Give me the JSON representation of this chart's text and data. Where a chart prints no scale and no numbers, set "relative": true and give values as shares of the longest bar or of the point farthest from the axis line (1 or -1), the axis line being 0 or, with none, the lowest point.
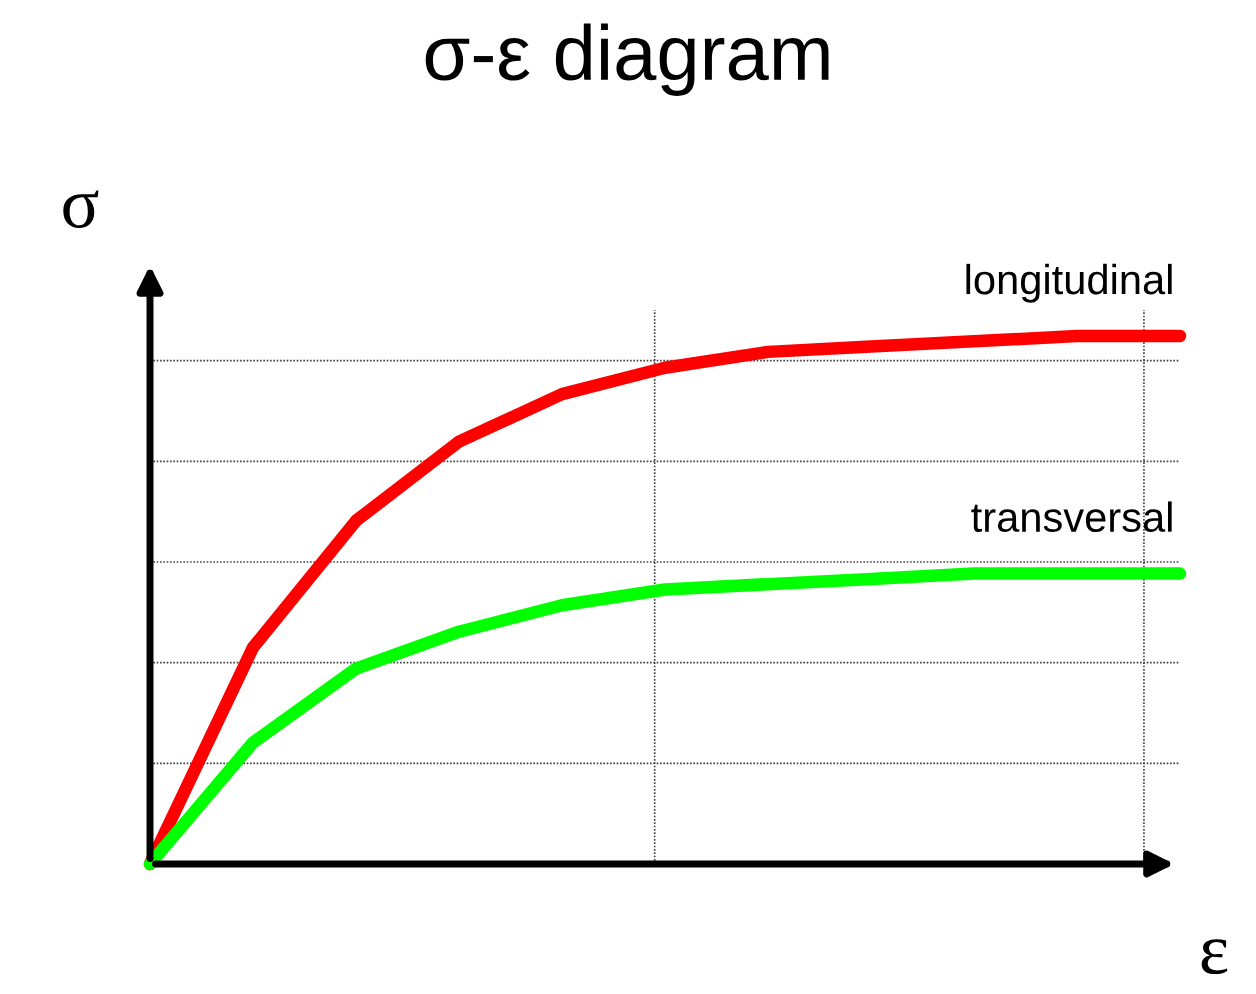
{
  "chart_data": {
    "type": "line",
    "title": "σ-ε diagram",
    "xlabel": "ε",
    "ylabel": "σ",
    "relative": true,
    "grid": true,
    "legend": false,
    "marker": "none",
    "line_style": "solid",
    "categories": [
      null,
      null,
      null,
      null,
      null,
      null,
      null,
      null,
      null,
      null,
      null
    ],
    "series": [
      {
        "name": "longitudinal",
        "color": "#ff0000",
        "values": [
          0,
          0.41,
          0.65,
          0.8,
          0.89,
          0.94,
          0.97,
          0.98,
          0.99,
          1.0,
          1.0
        ]
      },
      {
        "name": "transversal",
        "color": "#00ff00",
        "values": [
          0,
          0.23,
          0.37,
          0.44,
          0.49,
          0.52,
          0.53,
          0.54,
          0.55,
          0.55,
          0.55
        ]
      }
    ]
  }
}
